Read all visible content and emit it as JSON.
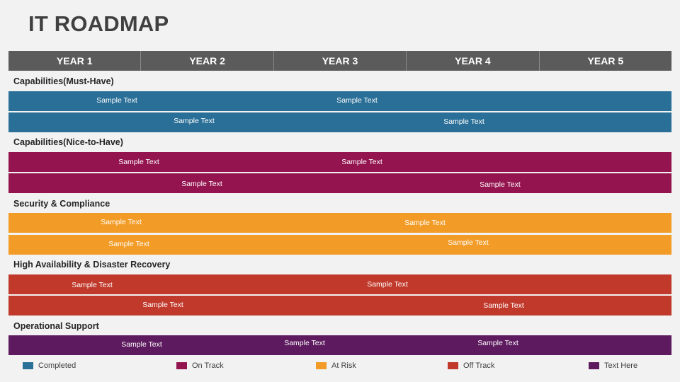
{
  "title": "IT ROADMAP",
  "years": [
    "YEAR 1",
    "YEAR 2",
    "YEAR 3",
    "YEAR 4",
    "YEAR 5"
  ],
  "colors": {
    "completed": "#2a6f97",
    "on_track": "#94144f",
    "at_risk": "#f29c27",
    "off_track": "#c0392b",
    "text_here": "#5d1a5f"
  },
  "categories": [
    {
      "label": "Capabilities(Must-Have)",
      "status": "completed",
      "rows": [
        [
          "Sample Text",
          "Sample Text"
        ],
        [
          "Sample Text",
          "Sample Text"
        ]
      ]
    },
    {
      "label": "Capabilities(Nice-to-Have)",
      "status": "on_track",
      "rows": [
        [
          "Sample Text",
          "Sample Text"
        ],
        [
          "Sample Text",
          "Sample Text"
        ]
      ]
    },
    {
      "label": "Security & Compliance",
      "status": "at_risk",
      "rows": [
        [
          "Sample Text",
          "Sample Text"
        ],
        [
          "Sample Text",
          "Sample Text"
        ]
      ]
    },
    {
      "label": "High Availability & Disaster Recovery",
      "status": "off_track",
      "rows": [
        [
          "Sample Text",
          "Sample Text"
        ],
        [
          "Sample Text",
          "Sample Text"
        ]
      ]
    },
    {
      "label": "Operational Support",
      "status": "text_here",
      "rows": [
        [
          "Sample Text",
          "Sample Text",
          "Sample Text"
        ]
      ]
    }
  ],
  "legend": [
    {
      "label": "Completed",
      "status": "completed"
    },
    {
      "label": "On Track",
      "status": "on_track"
    },
    {
      "label": "At Risk",
      "status": "at_risk"
    },
    {
      "label": "Off Track",
      "status": "off_track"
    },
    {
      "label": "Text Here",
      "status": "text_here"
    }
  ]
}
